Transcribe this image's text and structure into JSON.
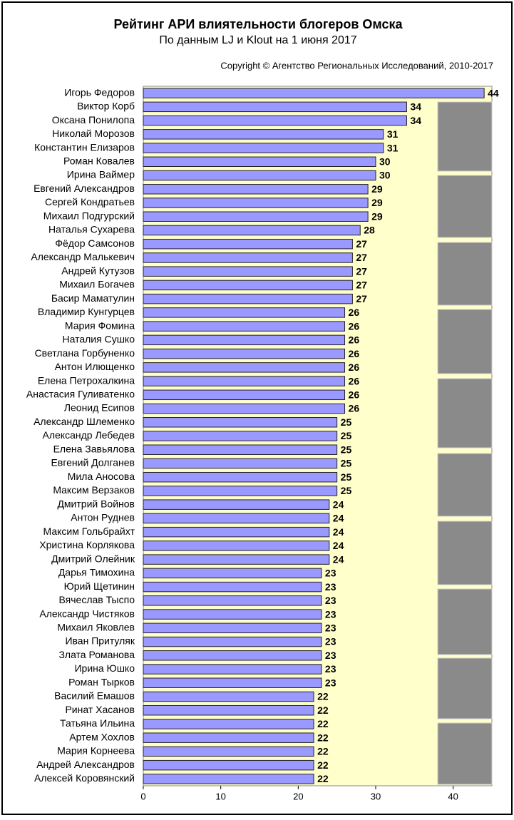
{
  "chart_data": {
    "type": "bar",
    "orientation": "horizontal",
    "title": "Рейтинг АРИ влиятельности блогеров Омска",
    "subtitle": "По данным LJ и Klout на 1 июня 2017",
    "copyright": "Copyright © Агентство Региональных Исследований, 2010-2017",
    "categories": [
      "Игорь Федоров",
      "Виктор Корб",
      "Оксана Понилопа",
      "Николай Морозов",
      "Константин Елизаров",
      "Роман Ковалев",
      "Ирина Ваймер",
      "Евгений Александров",
      "Сергей Кондратьев",
      "Михаил Подгурский",
      "Наталья Сухарева",
      "Фёдор Самсонов",
      "Александр Малькевич",
      "Андрей Кутузов",
      "Михаил Богачев",
      "Басир Маматулин",
      "Владимир Кунгурцев",
      "Мария Фомина",
      "Наталия Сушко",
      "Светлана Горбуненко",
      "Антон Илющенко",
      "Елена Петрохалкина",
      "Анастасия Гуливатенко",
      "Леонид Есипов",
      "Александр Шлеменко",
      "Александр Лебедев",
      "Елена Завьялова",
      "Евгений Долганев",
      "Мила Аносова",
      "Максим Верзаков",
      "Дмитрий Войнов",
      "Антон Руднев",
      "Максим Гольбрайхт",
      "Христина Корлякова",
      "Дмитрий Олейник",
      "Дарья Тимохина",
      "Юрий Щетинин",
      "Вячеслав Тыспо",
      "Александр Чистяков",
      "Михаил Яковлев",
      "Иван Притуляк",
      "Злата Романова",
      "Ирина Юшко",
      "Роман Тырков",
      "Василий Емашов",
      "Ринат Хасанов",
      "Татьяна Ильина",
      "Артем Хохлов",
      "Мария Корнеева",
      "Андрей Александров",
      "Алексей Коровянский"
    ],
    "values": [
      44,
      34,
      34,
      31,
      31,
      30,
      30,
      29,
      29,
      29,
      28,
      27,
      27,
      27,
      27,
      27,
      26,
      26,
      26,
      26,
      26,
      26,
      26,
      26,
      25,
      25,
      25,
      25,
      25,
      25,
      24,
      24,
      24,
      24,
      24,
      23,
      23,
      23,
      23,
      23,
      23,
      23,
      23,
      23,
      22,
      22,
      22,
      22,
      22,
      22,
      22
    ],
    "color": "#9999ff",
    "xlim": [
      0,
      45
    ],
    "xticks": [
      0,
      10,
      20,
      30,
      40
    ],
    "grid": false
  }
}
